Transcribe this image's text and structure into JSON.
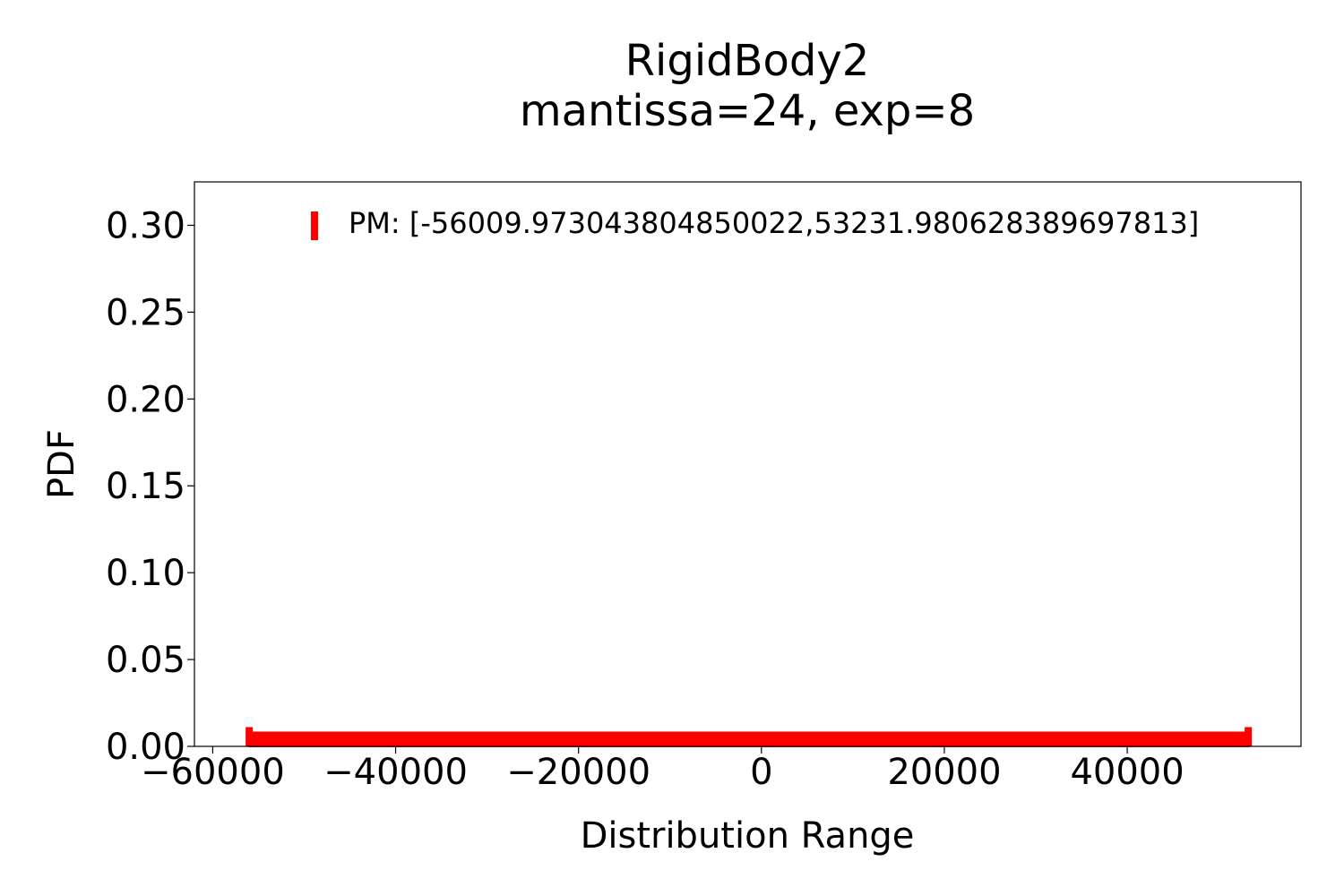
{
  "chart_data": {
    "type": "area",
    "title_line1": "RigidBody2",
    "title_line2": "mantissa=24, exp=8",
    "xlabel": "Distribution Range",
    "ylabel": "PDF",
    "xlim": [
      -62000,
      59000
    ],
    "ylim": [
      0,
      0.325
    ],
    "xticks": [
      -60000,
      -40000,
      -20000,
      0,
      20000,
      40000
    ],
    "xtick_labels": [
      "−60000",
      "−40000",
      "−20000",
      "0",
      "20000",
      "40000"
    ],
    "yticks": [
      0.0,
      0.05,
      0.1,
      0.15,
      0.2,
      0.25,
      0.3
    ],
    "ytick_labels": [
      "0.00",
      "0.05",
      "0.10",
      "0.15",
      "0.20",
      "0.25",
      "0.30"
    ],
    "grid": false,
    "legend_position": "top-right",
    "series": [
      {
        "name": "PM: [-56009.973043804850022,53231.980628389697813]",
        "color": "#ff0000",
        "x": [
          -56009.97304380485,
          -56009.97304380485,
          53231.9806283897,
          53231.9806283897
        ],
        "y": [
          0.0,
          0.008,
          0.008,
          0.0
        ]
      }
    ]
  }
}
